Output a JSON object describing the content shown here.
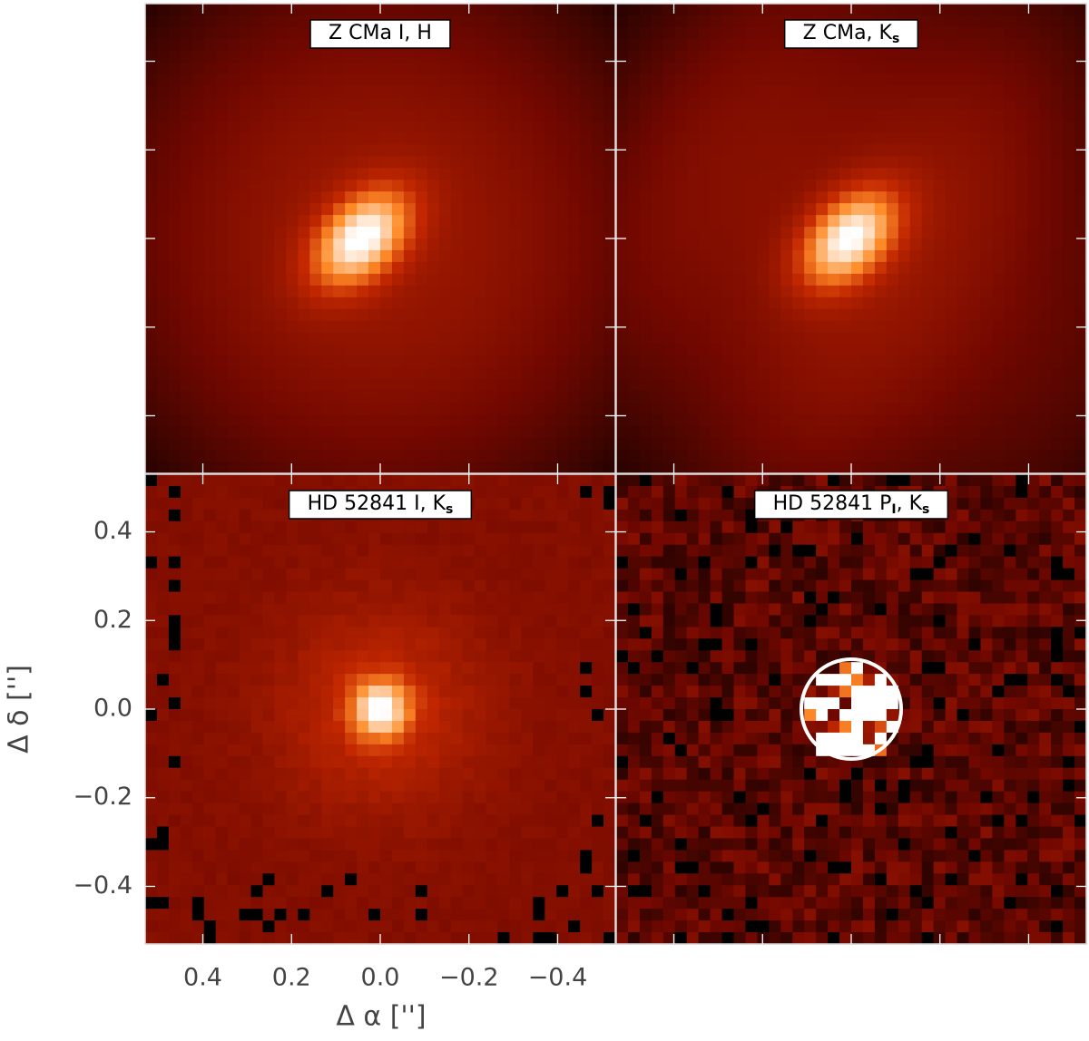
{
  "chart_data": {
    "type": "image",
    "panels": [
      {
        "title": [
          {
            "text": "Z CMa I, H"
          }
        ]
      },
      {
        "title": [
          {
            "text": "Z CMa, K"
          },
          {
            "sub": "s"
          }
        ]
      },
      {
        "title": [
          {
            "text": "HD 52841 I, K"
          },
          {
            "sub": "s"
          }
        ]
      },
      {
        "title": [
          {
            "text": "HD 52841 P"
          },
          {
            "sub": "I"
          },
          {
            "text": ", K"
          },
          {
            "sub": "s"
          }
        ]
      }
    ],
    "xlabel": "Δ α ['']",
    "ylabel": "Δ δ ['']",
    "xlim": [
      0.53,
      -0.53
    ],
    "ylim": [
      -0.53,
      0.53
    ],
    "xticks": [
      0.4,
      0.2,
      {
        "value": 0,
        "label": "0.0"
      },
      {
        "value": -0.2,
        "label": "−0.2"
      },
      {
        "value": -0.4,
        "label": "−0.4"
      }
    ],
    "yticks": [
      {
        "value": -0.4,
        "label": "−0.4"
      },
      {
        "value": -0.2,
        "label": "−0.2"
      },
      {
        "value": 0,
        "label": "0.0"
      },
      0.2,
      0.4
    ]
  }
}
